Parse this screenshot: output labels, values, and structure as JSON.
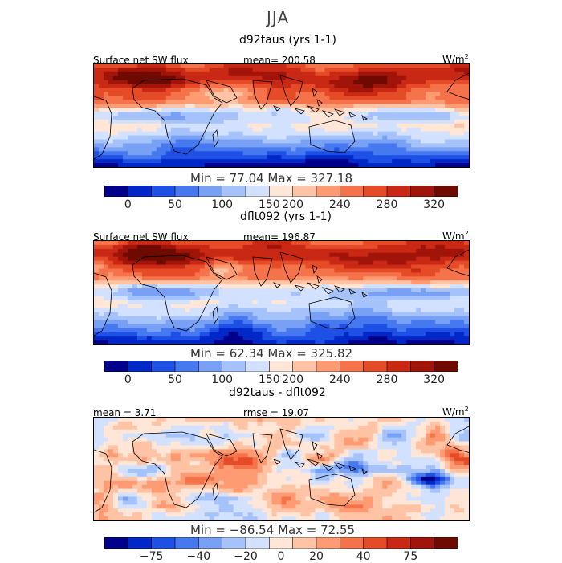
{
  "season": "JJA",
  "panels": [
    {
      "title": "d92taus (yrs 1-1)",
      "left_label": "Surface net SW flux",
      "mid_label": "mean= 200.58",
      "units": "W/m",
      "units_sup": "2",
      "minmax": "Min =  77.04  Max =  327.18",
      "ticks": [
        "0",
        "50",
        "100",
        "150",
        "200",
        "240",
        "280",
        "320"
      ],
      "field": "abs"
    },
    {
      "title": "dflt092 (yrs 1-1)",
      "left_label": "Surface net SW flux",
      "mid_label": "mean= 196.87",
      "units": "W/m",
      "units_sup": "2",
      "minmax": "Min =  62.34  Max =  325.82",
      "ticks": [
        "0",
        "50",
        "100",
        "150",
        "200",
        "240",
        "280",
        "320"
      ],
      "field": "abs"
    },
    {
      "title": "d92taus - dflt092",
      "left_label": "mean =   3.71",
      "mid_label": "rmse =  19.07",
      "units": "W/m",
      "units_sup": "2",
      "minmax": "Min = −86.54  Max =  72.55",
      "ticks": [
        "−75",
        "−40",
        "−20",
        "0",
        "20",
        "40",
        "75"
      ],
      "field": "diff"
    }
  ],
  "colors": {
    "scale": [
      "#00008b",
      "#0028c8",
      "#1e50e6",
      "#4678f0",
      "#78a0f5",
      "#a5c3fa",
      "#d2e1ff",
      "#ffe6d7",
      "#ffc3a5",
      "#ff9b73",
      "#f5734b",
      "#e64b28",
      "#c82814",
      "#a01409",
      "#6e0a00"
    ]
  },
  "chart_data": [
    {
      "type": "heatmap",
      "title": "d92taus (yrs 1-1)",
      "variable": "Surface net SW flux",
      "season": "JJA",
      "units": "W/m2",
      "mean": 200.58,
      "min": 77.04,
      "max": 327.18,
      "colorbar_ticks": [
        0,
        50,
        100,
        150,
        200,
        240,
        280,
        320
      ]
    },
    {
      "type": "heatmap",
      "title": "dflt092 (yrs 1-1)",
      "variable": "Surface net SW flux",
      "season": "JJA",
      "units": "W/m2",
      "mean": 196.87,
      "min": 62.34,
      "max": 325.82,
      "colorbar_ticks": [
        0,
        50,
        100,
        150,
        200,
        240,
        280,
        320
      ]
    },
    {
      "type": "heatmap",
      "title": "d92taus - dflt092",
      "variable": "Surface net SW flux difference",
      "season": "JJA",
      "units": "W/m2",
      "mean": 3.71,
      "rmse": 19.07,
      "min": -86.54,
      "max": 72.55,
      "colorbar_ticks": [
        -75,
        -40,
        -20,
        0,
        20,
        40,
        75
      ]
    }
  ]
}
